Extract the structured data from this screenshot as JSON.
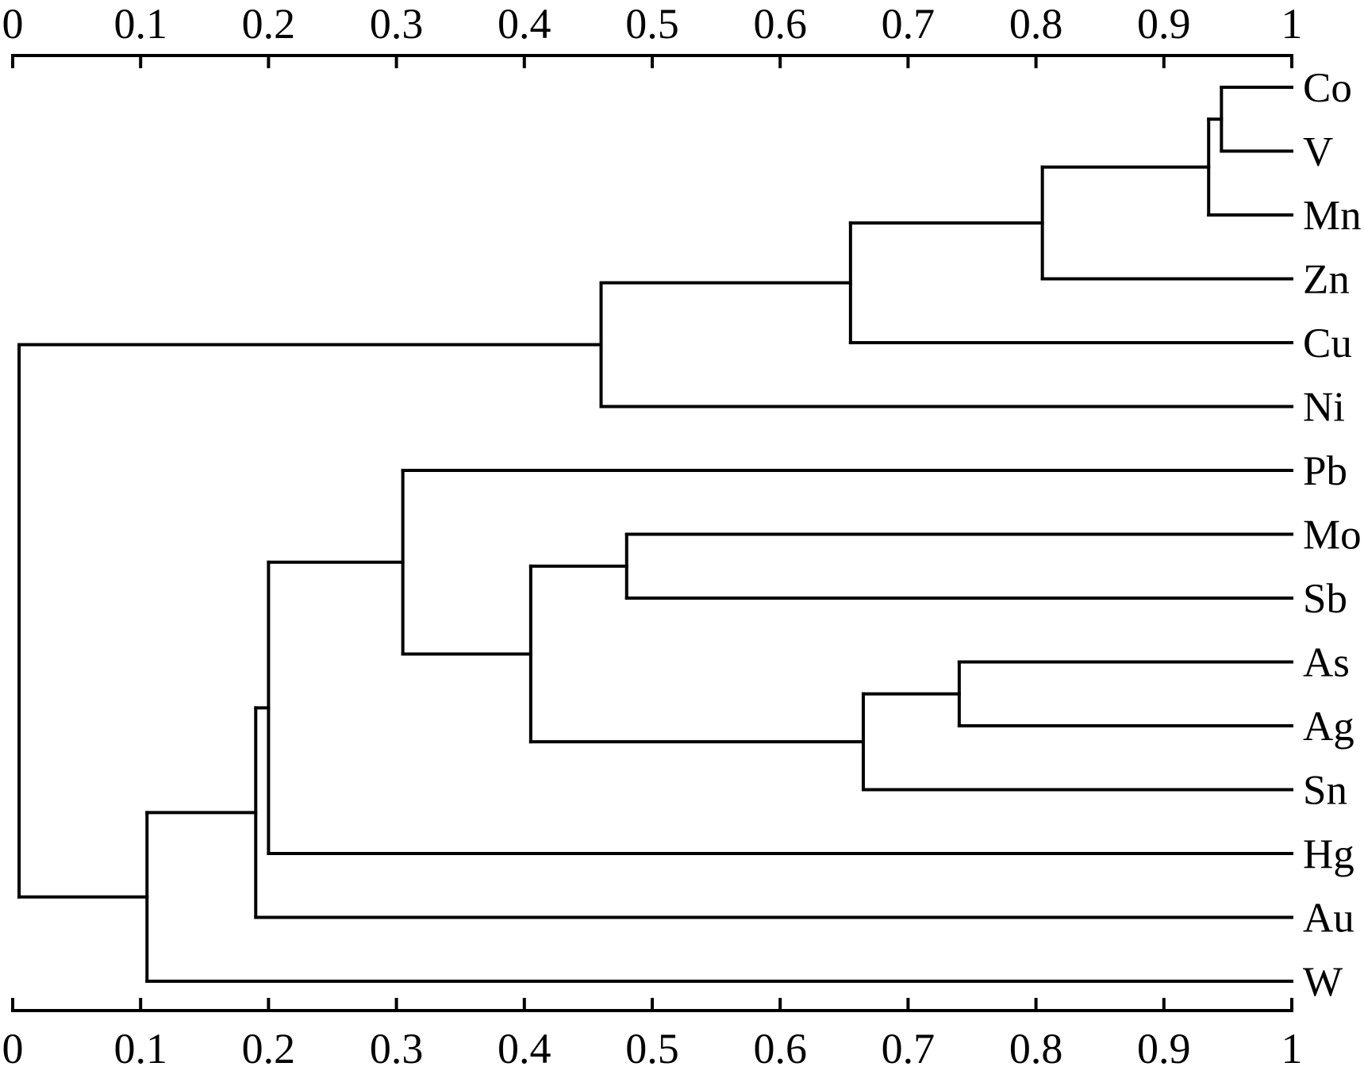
{
  "chart_data": {
    "type": "dendrogram",
    "orientation": "horizontal-right",
    "leaves": [
      "Co",
      "V",
      "Mn",
      "Zn",
      "Cu",
      "Ni",
      "Pb",
      "Mo",
      "Sb",
      "As",
      "Ag",
      "Sn",
      "Hg",
      "Au",
      "W"
    ],
    "merges": [
      {
        "id": "n1",
        "children": [
          "Co",
          "V"
        ],
        "height": 0.945
      },
      {
        "id": "n2",
        "children": [
          "n1",
          "Mn"
        ],
        "height": 0.935
      },
      {
        "id": "n3",
        "children": [
          "n2",
          "Zn"
        ],
        "height": 0.805
      },
      {
        "id": "n4",
        "children": [
          "n3",
          "Cu"
        ],
        "height": 0.655
      },
      {
        "id": "n5",
        "children": [
          "n4",
          "Ni"
        ],
        "height": 0.46
      },
      {
        "id": "n6",
        "children": [
          "Mo",
          "Sb"
        ],
        "height": 0.48
      },
      {
        "id": "n7",
        "children": [
          "As",
          "Ag"
        ],
        "height": 0.74
      },
      {
        "id": "n8",
        "children": [
          "n7",
          "Sn"
        ],
        "height": 0.665
      },
      {
        "id": "n9",
        "children": [
          "n6",
          "n8"
        ],
        "height": 0.405
      },
      {
        "id": "n10",
        "children": [
          "Pb",
          "n9"
        ],
        "height": 0.305
      },
      {
        "id": "n11",
        "children": [
          "n10",
          "Hg"
        ],
        "height": 0.2
      },
      {
        "id": "n12",
        "children": [
          "n11",
          "Au"
        ],
        "height": 0.19
      },
      {
        "id": "n13",
        "children": [
          "n12",
          "W"
        ],
        "height": 0.105
      },
      {
        "id": "n14",
        "children": [
          "n5",
          "n13"
        ],
        "height": 0.005
      }
    ],
    "axis": {
      "min": 0,
      "max": 1,
      "tick_step": 0.1,
      "tick_labels": [
        "0",
        "0.1",
        "0.2",
        "0.3",
        "0.4",
        "0.5",
        "0.6",
        "0.7",
        "0.8",
        "0.9",
        "1"
      ],
      "positions": [
        "top",
        "bottom"
      ],
      "grid": false
    },
    "line_color": "#000000",
    "background_color": "#ffffff"
  }
}
